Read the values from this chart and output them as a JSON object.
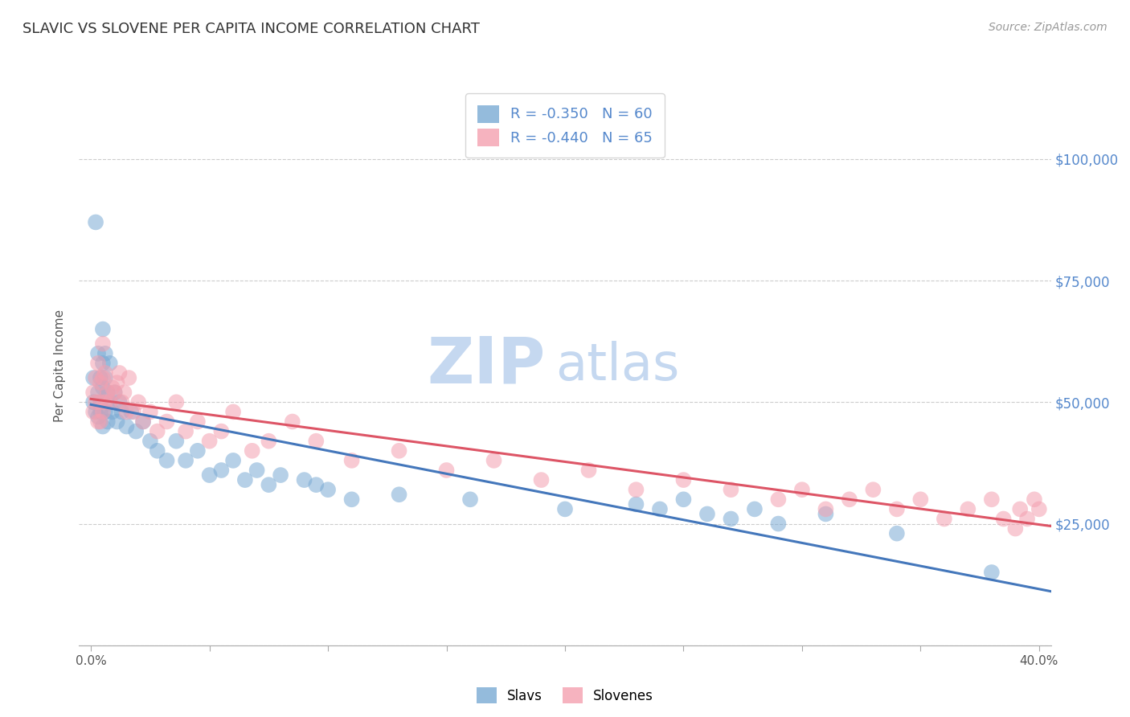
{
  "title": "SLAVIC VS SLOVENE PER CAPITA INCOME CORRELATION CHART",
  "source_text": "Source: ZipAtlas.com",
  "ylabel": "Per Capita Income",
  "xlim": [
    -0.005,
    0.405
  ],
  "ylim": [
    0,
    115000
  ],
  "yticks": [
    0,
    25000,
    50000,
    75000,
    100000
  ],
  "ytick_labels": [
    "",
    "$25,000",
    "$50,000",
    "$75,000",
    "$100,000"
  ],
  "xticks": [
    0.0,
    0.05,
    0.1,
    0.15,
    0.2,
    0.25,
    0.3,
    0.35,
    0.4
  ],
  "xtick_labels": [
    "0.0%",
    "",
    "",
    "",
    "",
    "",
    "",
    "",
    "40.0%"
  ],
  "slavs_color": "#7aaad4",
  "slovenes_color": "#f4a0b0",
  "trendline_slavs_color": "#4477bb",
  "trendline_slovenes_color": "#dd5566",
  "legend_label_slavs": "Slavs",
  "legend_label_slovenes": "Slovenes",
  "R_slavs": -0.35,
  "N_slavs": 60,
  "R_slovenes": -0.44,
  "N_slovenes": 65,
  "background_color": "#ffffff",
  "grid_color": "#cccccc",
  "axis_label_color": "#5588cc",
  "title_color": "#333333",
  "watermark_zip": "ZIP",
  "watermark_atlas": "atlas",
  "watermark_color_zip": "#c5d8f0",
  "watermark_color_atlas": "#c5d8f0",
  "slavs_x": [
    0.001,
    0.001,
    0.002,
    0.002,
    0.003,
    0.003,
    0.003,
    0.004,
    0.004,
    0.004,
    0.005,
    0.005,
    0.005,
    0.005,
    0.006,
    0.006,
    0.006,
    0.007,
    0.007,
    0.008,
    0.008,
    0.009,
    0.01,
    0.011,
    0.012,
    0.013,
    0.015,
    0.017,
    0.019,
    0.022,
    0.025,
    0.028,
    0.032,
    0.036,
    0.04,
    0.045,
    0.05,
    0.055,
    0.06,
    0.065,
    0.07,
    0.075,
    0.08,
    0.09,
    0.095,
    0.1,
    0.11,
    0.13,
    0.16,
    0.2,
    0.23,
    0.24,
    0.25,
    0.26,
    0.27,
    0.28,
    0.29,
    0.31,
    0.34,
    0.38
  ],
  "slavs_y": [
    50000,
    55000,
    87000,
    48000,
    52000,
    60000,
    47000,
    55000,
    50000,
    48000,
    65000,
    58000,
    53000,
    45000,
    60000,
    55000,
    48000,
    52000,
    46000,
    58000,
    50000,
    48000,
    52000,
    46000,
    50000,
    48000,
    45000,
    48000,
    44000,
    46000,
    42000,
    40000,
    38000,
    42000,
    38000,
    40000,
    35000,
    36000,
    38000,
    34000,
    36000,
    33000,
    35000,
    34000,
    33000,
    32000,
    30000,
    31000,
    30000,
    28000,
    29000,
    28000,
    30000,
    27000,
    26000,
    28000,
    25000,
    27000,
    23000,
    15000
  ],
  "slovenes_x": [
    0.001,
    0.001,
    0.002,
    0.002,
    0.003,
    0.003,
    0.004,
    0.004,
    0.004,
    0.005,
    0.005,
    0.005,
    0.006,
    0.006,
    0.007,
    0.008,
    0.009,
    0.01,
    0.011,
    0.012,
    0.013,
    0.014,
    0.015,
    0.016,
    0.018,
    0.02,
    0.022,
    0.025,
    0.028,
    0.032,
    0.036,
    0.04,
    0.045,
    0.05,
    0.055,
    0.06,
    0.068,
    0.075,
    0.085,
    0.095,
    0.11,
    0.13,
    0.15,
    0.17,
    0.19,
    0.21,
    0.23,
    0.25,
    0.27,
    0.29,
    0.3,
    0.31,
    0.32,
    0.33,
    0.34,
    0.35,
    0.36,
    0.37,
    0.38,
    0.385,
    0.39,
    0.392,
    0.395,
    0.398,
    0.4
  ],
  "slovenes_y": [
    52000,
    48000,
    55000,
    50000,
    58000,
    46000,
    54000,
    50000,
    46000,
    62000,
    55000,
    48000,
    56000,
    50000,
    52000,
    50000,
    53000,
    52000,
    54000,
    56000,
    50000,
    52000,
    48000,
    55000,
    48000,
    50000,
    46000,
    48000,
    44000,
    46000,
    50000,
    44000,
    46000,
    42000,
    44000,
    48000,
    40000,
    42000,
    46000,
    42000,
    38000,
    40000,
    36000,
    38000,
    34000,
    36000,
    32000,
    34000,
    32000,
    30000,
    32000,
    28000,
    30000,
    32000,
    28000,
    30000,
    26000,
    28000,
    30000,
    26000,
    24000,
    28000,
    26000,
    30000,
    28000
  ]
}
